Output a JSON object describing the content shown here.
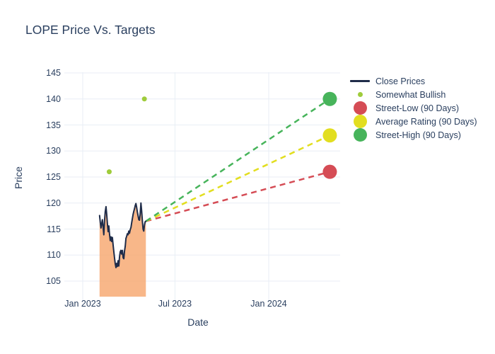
{
  "title": "LOPE Price Vs. Targets",
  "chart_data": {
    "type": "line",
    "title": "LOPE Price Vs. Targets",
    "xlabel": "Date",
    "ylabel": "Price",
    "ylim": [
      102,
      145.5
    ],
    "grid": true,
    "legend_position": "right",
    "y_ticks": [
      105,
      110,
      115,
      120,
      125,
      130,
      135,
      140,
      145
    ],
    "x_ticks": [
      {
        "label": "Jan 2023",
        "date": "2023-01-01"
      },
      {
        "label": "Jul 2023",
        "date": "2023-07-01"
      },
      {
        "label": "Jan 2024",
        "date": "2024-01-01"
      }
    ],
    "close_prices": {
      "name": "Close Prices",
      "line_color": "#1f2c49",
      "fill_color": "#f7a76f",
      "start_date": "2023-02-03",
      "end_date": "2023-05-05",
      "prices": [
        117.6,
        116.3,
        115.2,
        116.0,
        116.8,
        115.4,
        113.9,
        116.5,
        118.3,
        119.3,
        117.8,
        116.0,
        114.5,
        115.6,
        114.0,
        112.8,
        113.5,
        112.6,
        113.4,
        112.0,
        110.6,
        109.4,
        108.3,
        107.6,
        108.4,
        107.8,
        108.9,
        107.9,
        109.6,
        110.6,
        110.9,
        110.2,
        110.9,
        109.5,
        109.3,
        110.8,
        111.7,
        113.2,
        113.6,
        114.1,
        113.9,
        114.6,
        114.2,
        114.9,
        115.3,
        116.2,
        117.0,
        117.8,
        118.4,
        118.9,
        119.5,
        119.9,
        119.2,
        118.3,
        117.6,
        116.8,
        116.7,
        118.0,
        120.0,
        118.5,
        116.6,
        115.0,
        114.6,
        115.8,
        116.4,
        116.5
      ]
    },
    "analyst_ratings": {
      "name": "Somewhat Bullish",
      "color": "#9fcc3b",
      "points": [
        {
          "date": "2023-02-22",
          "price": 126
        },
        {
          "date": "2023-05-02",
          "price": 140
        }
      ]
    },
    "targets": [
      {
        "name": "Street-Low (90 Days)",
        "color": "#d54c55",
        "date": "2024-04-30",
        "price": 126
      },
      {
        "name": "Average Rating (90 Days)",
        "color": "#e2de20",
        "date": "2024-04-30",
        "price": 133
      },
      {
        "name": "Street-High (90 Days)",
        "color": "#47b45b",
        "date": "2024-04-30",
        "price": 140
      }
    ]
  },
  "legend": {
    "items": [
      {
        "label": "Close Prices",
        "swatch": "line",
        "color": "#1f2c49"
      },
      {
        "label": "Somewhat Bullish",
        "swatch": "dot",
        "color": "#9fcc3b"
      },
      {
        "label": "Street-Low (90 Days)",
        "swatch": "circle",
        "color": "#d54c55"
      },
      {
        "label": "Average Rating (90 Days)",
        "swatch": "circle",
        "color": "#e2de20"
      },
      {
        "label": "Street-High (90 Days)",
        "swatch": "circle",
        "color": "#47b45b"
      }
    ]
  },
  "colors": {
    "text": "#2a3f5f",
    "grid": "#e8eef5",
    "background": "#ffffff"
  }
}
